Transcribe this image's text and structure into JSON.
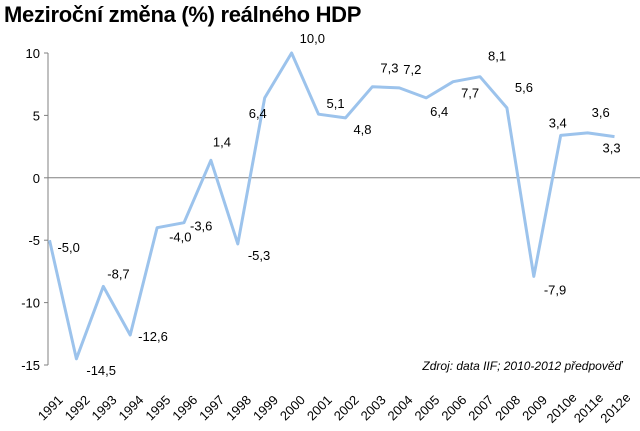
{
  "chart_data": {
    "type": "line",
    "title": "Meziroční změna (%) reálného HDP",
    "xlabel": "",
    "ylabel": "",
    "ylim": [
      -15,
      10
    ],
    "yticks": [
      10,
      5,
      0,
      -5,
      -10,
      -15
    ],
    "grid": false,
    "series": [
      {
        "name": "Meziroční změna (%) reálného HDP",
        "color": "#9cc3ec",
        "x": [
          "1991",
          "1992",
          "1993",
          "1994",
          "1995",
          "1996",
          "1997",
          "1998",
          "1999",
          "2000",
          "2001",
          "2002",
          "2003",
          "2004",
          "2005",
          "2006",
          "2007",
          "2008",
          "2009",
          "2010e",
          "2011e",
          "2012e"
        ],
        "values": [
          -5.0,
          -14.5,
          -8.7,
          -12.6,
          -4.0,
          -3.6,
          1.4,
          -5.3,
          6.4,
          10.0,
          5.1,
          4.8,
          7.3,
          7.2,
          6.4,
          7.7,
          8.1,
          5.6,
          -7.9,
          3.4,
          3.6,
          3.3
        ]
      }
    ],
    "data_labels": [
      "-5,0",
      "-14,5",
      "-8,7",
      "-12,6",
      "-4,0",
      "-3,6",
      "1,4",
      "-5,3",
      "6,4",
      "10,0",
      "5,1",
      "4,8",
      "7,3",
      "7,2",
      "6,4",
      "7,7",
      "8,1",
      "5,6",
      "-7,9",
      "3,4",
      "3,6",
      "3,3"
    ],
    "annotation": "Zdroj: data IIF; 2010-2012 předpověď"
  }
}
